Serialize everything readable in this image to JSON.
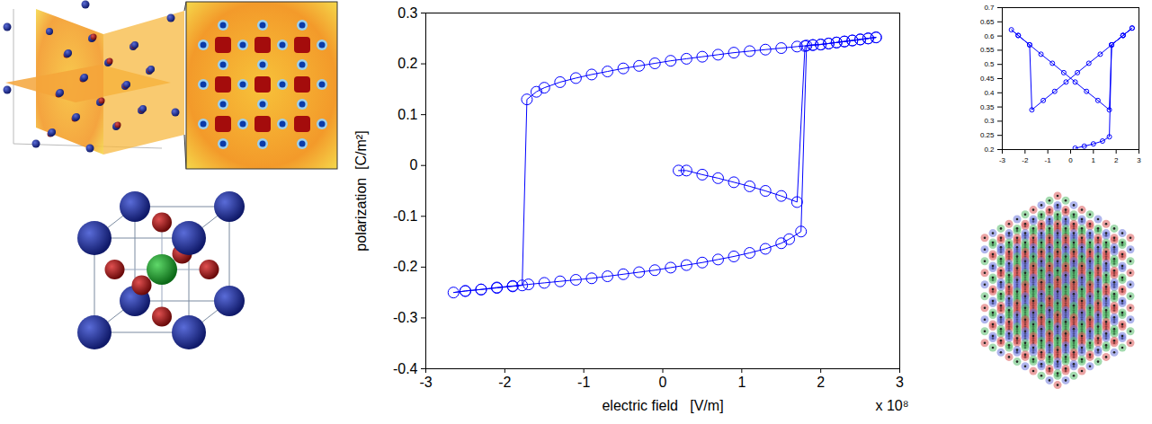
{
  "chart_data": [
    {
      "type": "line",
      "marker": "circle",
      "color": "#0000ff",
      "x_label": "electric field   [V/m]",
      "y_label": "polarization  [C/m²]",
      "annotations": [
        "x 10⁸"
      ],
      "xlim": [
        -3,
        3
      ],
      "xticks": [
        -3,
        -2,
        -1,
        0,
        1,
        2,
        3
      ],
      "ylim": [
        -0.4,
        0.3
      ],
      "yticks": [
        -0.4,
        -0.3,
        -0.2,
        -0.1,
        0,
        0.1,
        0.2,
        0.3
      ],
      "x": [
        0.2,
        0.3,
        0.5,
        0.7,
        0.9,
        1.1,
        1.3,
        1.5,
        1.7,
        1.8,
        1.9,
        2.0,
        2.1,
        2.2,
        2.3,
        2.4,
        2.5,
        2.6,
        2.7,
        2.5,
        2.3,
        2.1,
        1.9,
        1.7,
        1.5,
        1.3,
        1.1,
        0.9,
        0.7,
        0.5,
        0.3,
        0.1,
        -0.1,
        -0.3,
        -0.5,
        -0.7,
        -0.9,
        -1.1,
        -1.3,
        -1.5,
        -1.6,
        -1.72,
        -1.78,
        -1.9,
        -2.1,
        -2.3,
        -2.5,
        -2.65,
        -2.5,
        -2.3,
        -2.1,
        -1.9,
        -1.7,
        -1.5,
        -1.3,
        -1.1,
        -0.9,
        -0.7,
        -0.5,
        -0.3,
        -0.1,
        0.1,
        0.3,
        0.5,
        0.7,
        0.9,
        1.1,
        1.3,
        1.5,
        1.6,
        1.75,
        1.82,
        2.0,
        2.2,
        2.4,
        2.6,
        2.7
      ],
      "values": [
        -0.01,
        -0.01,
        -0.018,
        -0.025,
        -0.033,
        -0.041,
        -0.05,
        -0.06,
        -0.072,
        0.235,
        0.237,
        0.238,
        0.24,
        0.242,
        0.244,
        0.246,
        0.248,
        0.25,
        0.252,
        0.248,
        0.244,
        0.24,
        0.237,
        0.234,
        0.231,
        0.228,
        0.225,
        0.222,
        0.218,
        0.214,
        0.21,
        0.206,
        0.201,
        0.196,
        0.191,
        0.185,
        0.179,
        0.172,
        0.164,
        0.153,
        0.145,
        0.13,
        -0.236,
        -0.238,
        -0.241,
        -0.244,
        -0.247,
        -0.25,
        -0.247,
        -0.244,
        -0.24,
        -0.237,
        -0.234,
        -0.231,
        -0.228,
        -0.225,
        -0.222,
        -0.218,
        -0.214,
        -0.21,
        -0.206,
        -0.201,
        -0.196,
        -0.191,
        -0.185,
        -0.179,
        -0.172,
        -0.164,
        -0.153,
        -0.145,
        -0.13,
        0.236,
        0.238,
        0.242,
        0.246,
        0.25,
        0.252
      ]
    },
    {
      "type": "line",
      "marker": "circle",
      "color": "#0000ff",
      "xlim": [
        -3,
        3
      ],
      "xticks": [
        -3,
        -2,
        -1,
        0,
        1,
        2,
        3
      ],
      "ylim": [
        0.2,
        0.7
      ],
      "yticks": [
        0.2,
        0.25,
        0.3,
        0.35,
        0.4,
        0.45,
        0.5,
        0.55,
        0.6,
        0.65,
        0.7
      ],
      "x": [
        0.2,
        0.6,
        1.0,
        1.4,
        1.7,
        1.8,
        2.3,
        2.7,
        2.3,
        1.8,
        1.3,
        0.8,
        0.3,
        -0.2,
        -0.7,
        -1.2,
        -1.7,
        -1.8,
        -2.3,
        -2.6,
        -2.3,
        -1.8,
        -1.3,
        -0.8,
        -0.3,
        0.2,
        0.7,
        1.2,
        1.7,
        1.8,
        2.3,
        2.7
      ],
      "values": [
        0.205,
        0.212,
        0.22,
        0.23,
        0.245,
        0.569,
        0.602,
        0.628,
        0.602,
        0.569,
        0.536,
        0.504,
        0.471,
        0.438,
        0.405,
        0.373,
        0.34,
        0.569,
        0.602,
        0.622,
        0.602,
        0.569,
        0.536,
        0.504,
        0.471,
        0.438,
        0.405,
        0.373,
        0.34,
        0.569,
        0.602,
        0.628
      ]
    }
  ]
}
